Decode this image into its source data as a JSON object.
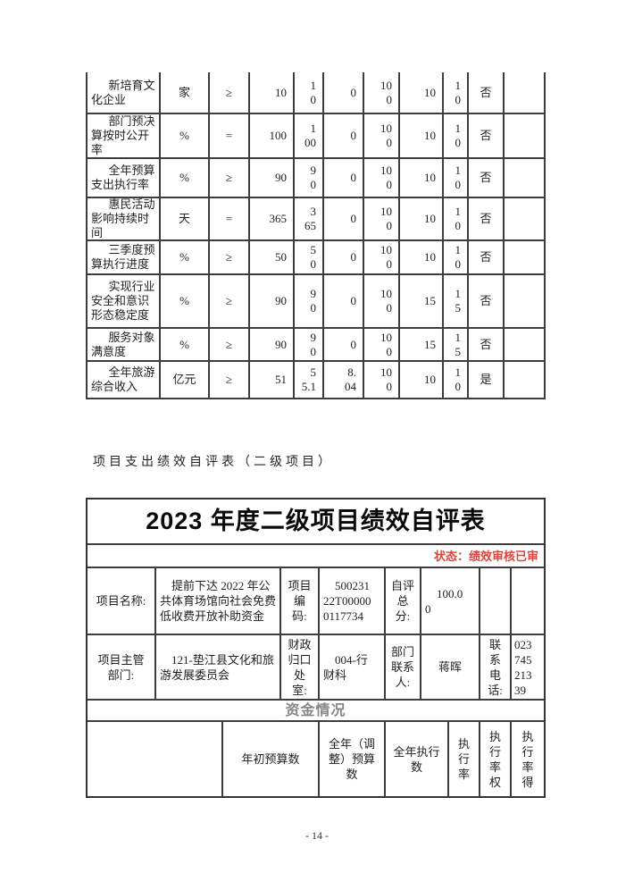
{
  "document": {
    "caption": "项目支出绩效自评表（二级项目）",
    "page_number": "- 14 -"
  },
  "indicator_table": {
    "rows": [
      {
        "indicator": "新培育文化企业",
        "unit": "家",
        "operator": "≥",
        "target": "10",
        "actual": "1\n0",
        "deviation": "0",
        "completion": "10\n0",
        "weight": "10",
        "score": "1\n0",
        "large_deviation": "否",
        "note": ""
      },
      {
        "indicator": "部门预决算按时公开率",
        "unit": "%",
        "operator": "=",
        "target": "100",
        "actual": "1\n00",
        "deviation": "0",
        "completion": "10\n0",
        "weight": "10",
        "score": "1\n0",
        "large_deviation": "否",
        "note": ""
      },
      {
        "indicator": "全年预算支出执行率",
        "unit": "%",
        "operator": "≥",
        "target": "90",
        "actual": "9\n0",
        "deviation": "0",
        "completion": "10\n0",
        "weight": "10",
        "score": "1\n0",
        "large_deviation": "否",
        "note": ""
      },
      {
        "indicator": "惠民活动影响持续时间",
        "unit": "天",
        "operator": "=",
        "target": "365",
        "actual": "3\n65",
        "deviation": "0",
        "completion": "10\n0",
        "weight": "10",
        "score": "1\n0",
        "large_deviation": "否",
        "note": ""
      },
      {
        "indicator": "三季度预算执行进度",
        "unit": "%",
        "operator": "≥",
        "target": "50",
        "actual": "5\n0",
        "deviation": "0",
        "completion": "10\n0",
        "weight": "10",
        "score": "1\n0",
        "large_deviation": "否",
        "note": ""
      },
      {
        "indicator": "实现行业安全和意识形态稳定度",
        "unit": "%",
        "operator": "≥",
        "target": "90",
        "actual": "9\n0",
        "deviation": "0",
        "completion": "10\n0",
        "weight": "15",
        "score": "1\n5",
        "large_deviation": "否",
        "note": ""
      },
      {
        "indicator": "服务对象满意度",
        "unit": "%",
        "operator": "≥",
        "target": "90",
        "actual": "9\n0",
        "deviation": "0",
        "completion": "10\n0",
        "weight": "15",
        "score": "1\n5",
        "large_deviation": "否",
        "note": ""
      },
      {
        "indicator": "全年旅游综合收入",
        "unit": "亿元",
        "operator": "≥",
        "target": "51",
        "actual": "5\n5.1",
        "deviation": "8.\n04",
        "completion": "10\n0",
        "weight": "10",
        "score": "1\n0",
        "large_deviation": "是",
        "note": ""
      }
    ]
  },
  "self_eval_table": {
    "title": "2023 年度二级项目绩效自评表",
    "status": "状态：绩效审核已审",
    "project_name_label": "项目名称:",
    "project_name": "提前下达 2022 年公共体育场馆向社会免费低收费开放补助资金",
    "project_code_label": "项目\n编\n码:",
    "project_code": "500231\n22T00000\n0117734",
    "self_score_label": "自评\n总\n分:",
    "self_score": "100.0\n0",
    "dept_label": "项目主管\n部门:",
    "dept": "121-垫江县文化和旅游发展委员会",
    "finance_office_label": "财政\n归口\n处\n室:",
    "finance_office": "004-行\n财科",
    "contact_label": "部门\n联系\n人:",
    "contact": "蒋晖",
    "phone_label": "联\n系\n电\n话:",
    "phone": "023\n745\n213\n39",
    "funding_section_title": "资金情况",
    "funding_headers": {
      "row_label": "",
      "annual_budget": "年初预算数",
      "adjusted_budget": "全年（调\n整）预算\n数",
      "executed": "全年执行\n数",
      "execution_rate": "执\n行\n率",
      "execution_rate_weight": "执\n行\n率\n权",
      "execution_rate_score": "执\n行\n率\n得"
    }
  }
}
